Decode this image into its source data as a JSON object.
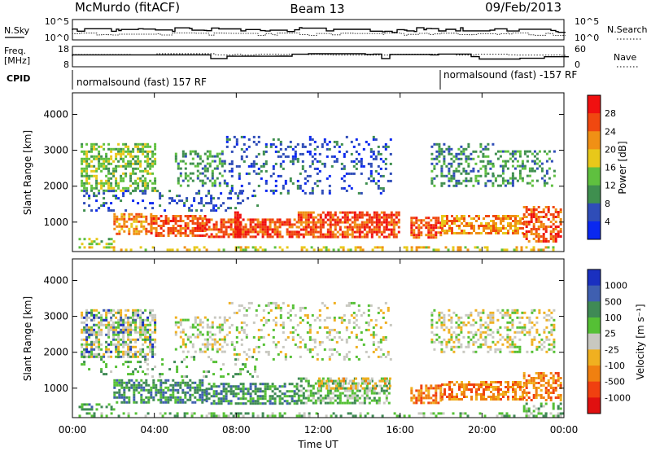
{
  "header": {
    "station": "McMurdo (fitACF)",
    "beam": "Beam 13",
    "date": "09/Feb/2013"
  },
  "panels": {
    "nsky": {
      "label": "N.Sky",
      "left_ticks": [
        "10^5",
        "10^0"
      ],
      "right_ticks": [
        "10^5",
        "10^0"
      ],
      "right_label": "N.Search"
    },
    "freq": {
      "label_line1": "Freq.",
      "label_line2": "[MHz]",
      "left_ticks": [
        "18",
        "8"
      ],
      "right_ticks": [
        "60",
        "0"
      ],
      "right_label": "Nave"
    },
    "cpid": {
      "label": "CPID",
      "programs": [
        {
          "text": "normalsound (fast) 157 RF",
          "start_hour": 0
        },
        {
          "text": "normalsound (fast) -157 RF",
          "start_hour": 18
        }
      ]
    }
  },
  "x_axis": {
    "label": "Time UT",
    "ticks": [
      "00:00",
      "04:00",
      "08:00",
      "12:00",
      "16:00",
      "20:00",
      "00:00"
    ],
    "tick_hours": [
      0,
      4,
      8,
      12,
      16,
      20,
      24
    ],
    "range_hours": [
      0,
      24
    ]
  },
  "y_axis": {
    "label": "Slant Range [km]",
    "ticks": [
      "1000",
      "2000",
      "3000",
      "4000"
    ],
    "tick_values": [
      1000,
      2000,
      3000,
      4000
    ],
    "range_km": [
      180,
      4600
    ]
  },
  "colorbars": {
    "power": {
      "label": "Power [dB]",
      "ticks": [
        "4",
        "8",
        "12",
        "16",
        "20",
        "24",
        "28"
      ],
      "colors": [
        "#0a28f0",
        "#2f4db8",
        "#3f8f4f",
        "#5fc03f",
        "#e8c81a",
        "#f09015",
        "#f04810",
        "#f01010"
      ]
    },
    "velocity": {
      "label": "Velocity [m s⁻¹]",
      "ticks": [
        "1000",
        "500",
        "100",
        "25",
        "-25",
        "-100",
        "-500",
        "-1000"
      ],
      "colors": [
        "#1a30c0",
        "#3f5fb0",
        "#3f8a55",
        "#55c035",
        "#c8c8c0",
        "#f0b020",
        "#f08010",
        "#f04010",
        "#e01010"
      ]
    }
  },
  "chart_data": [
    {
      "type": "heatmap",
      "panel": "power",
      "x_unit": "hours UT",
      "y_unit": "slant range km",
      "regions": [
        {
          "t": [
            0.3,
            24
          ],
          "r": [
            200,
            330
          ],
          "level": 4,
          "density": 0.35
        },
        {
          "t": [
            0.3,
            2.0
          ],
          "r": [
            420,
            560
          ],
          "level": 3,
          "density": 0.5
        },
        {
          "t": [
            2.0,
            3.8
          ],
          "r": [
            700,
            1250
          ],
          "level": 5,
          "density": 0.6
        },
        {
          "t": [
            3.8,
            6.5
          ],
          "r": [
            600,
            1200
          ],
          "level": 6,
          "density": 0.65
        },
        {
          "t": [
            6.5,
            11.0
          ],
          "r": [
            600,
            1100
          ],
          "level": 6,
          "density": 0.7
        },
        {
          "t": [
            11.0,
            16.0
          ],
          "r": [
            600,
            1300
          ],
          "level": 6,
          "density": 0.7
        },
        {
          "t": [
            16.5,
            18.0
          ],
          "r": [
            600,
            1150
          ],
          "level": 6,
          "density": 0.6
        },
        {
          "t": [
            18.0,
            22.0
          ],
          "r": [
            700,
            1200
          ],
          "level": 5,
          "density": 0.6
        },
        {
          "t": [
            22.0,
            23.8
          ],
          "r": [
            450,
            1450
          ],
          "level": 6,
          "density": 0.6
        },
        {
          "t": [
            0.4,
            4.0
          ],
          "r": [
            1900,
            3200
          ],
          "level": 3,
          "density": 0.55
        },
        {
          "t": [
            5.0,
            7.5
          ],
          "r": [
            2000,
            3000
          ],
          "level": 2,
          "density": 0.35
        },
        {
          "t": [
            7.5,
            15.5
          ],
          "r": [
            1800,
            3400
          ],
          "level": 1,
          "density": 0.2
        },
        {
          "t": [
            17.5,
            20.5
          ],
          "r": [
            2000,
            3200
          ],
          "level": 2,
          "density": 0.4
        },
        {
          "t": [
            20.5,
            23.5
          ],
          "r": [
            2000,
            3000
          ],
          "level": 2,
          "density": 0.35
        },
        {
          "t": [
            0.4,
            9.0
          ],
          "r": [
            1300,
            1900
          ],
          "level": 1,
          "density": 0.2
        },
        {
          "t": [
            7.9,
            8.2
          ],
          "r": [
            600,
            1300
          ],
          "level": 7,
          "density": 0.9
        }
      ]
    },
    {
      "type": "heatmap",
      "panel": "velocity",
      "x_unit": "hours UT",
      "y_unit": "slant range km",
      "regions": [
        {
          "t": [
            0.3,
            24
          ],
          "r": [
            200,
            330
          ],
          "level": 3,
          "density": 0.35
        },
        {
          "t": [
            0.3,
            2.0
          ],
          "r": [
            420,
            580
          ],
          "level": 2,
          "density": 0.5
        },
        {
          "t": [
            2.0,
            6.5
          ],
          "r": [
            600,
            1250
          ],
          "level": 2,
          "density": 0.6
        },
        {
          "t": [
            6.5,
            11.0
          ],
          "r": [
            600,
            1150
          ],
          "level": 2,
          "density": 0.65
        },
        {
          "t": [
            11.0,
            15.5
          ],
          "r": [
            600,
            1300
          ],
          "level": 3,
          "density": 0.55
        },
        {
          "t": [
            12.0,
            15.5
          ],
          "r": [
            1000,
            1300
          ],
          "level": 5,
          "density": 0.4
        },
        {
          "t": [
            16.5,
            18.0
          ],
          "r": [
            600,
            1100
          ],
          "level": 6,
          "density": 0.6
        },
        {
          "t": [
            18.0,
            22.0
          ],
          "r": [
            700,
            1200
          ],
          "level": 6,
          "density": 0.6
        },
        {
          "t": [
            22.0,
            23.8
          ],
          "r": [
            700,
            1450
          ],
          "level": 6,
          "density": 0.55
        },
        {
          "t": [
            22.0,
            23.8
          ],
          "r": [
            200,
            600
          ],
          "level": 3,
          "density": 0.5
        },
        {
          "t": [
            0.4,
            4.0
          ],
          "r": [
            1900,
            3200
          ],
          "level": 4,
          "density": 0.55
        },
        {
          "t": [
            0.4,
            4.0
          ],
          "r": [
            1900,
            3200
          ],
          "level": 1,
          "density": 0.15
        },
        {
          "t": [
            5.0,
            7.5
          ],
          "r": [
            2000,
            3000
          ],
          "level": 4,
          "density": 0.35
        },
        {
          "t": [
            7.5,
            15.5
          ],
          "r": [
            1800,
            3400
          ],
          "level": 4,
          "density": 0.2
        },
        {
          "t": [
            17.5,
            23.5
          ],
          "r": [
            2000,
            3200
          ],
          "level": 4,
          "density": 0.35
        },
        {
          "t": [
            0.4,
            9.0
          ],
          "r": [
            1300,
            1900
          ],
          "level": 3,
          "density": 0.15
        }
      ]
    }
  ]
}
